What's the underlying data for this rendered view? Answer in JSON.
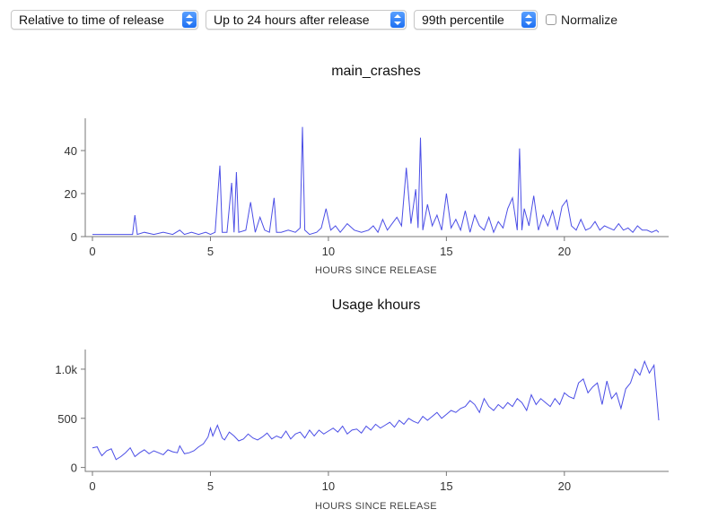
{
  "controls": {
    "time_mode": "Relative to time of release",
    "time_window": "Up to 24 hours after release",
    "percentile": "99th percentile",
    "normalize_label": "Normalize",
    "normalize_checked": false
  },
  "colors": {
    "series": "#4b4ee6",
    "axis": "#777777",
    "accent": "#1d6ff2"
  },
  "chart_data": [
    {
      "type": "line",
      "title": "main_crashes",
      "xlabel": "HOURS SINCE RELEASE",
      "ylabel": "",
      "xlim": [
        0,
        24
      ],
      "ylim": [
        0,
        55
      ],
      "xticks": [
        0,
        5,
        10,
        15,
        20
      ],
      "yticks": [
        0,
        20,
        40
      ],
      "ytick_labels": [
        "0",
        "20",
        "40"
      ],
      "grid": false,
      "series": [
        {
          "x": [
            0,
            0.5,
            1,
            1.5,
            1.7,
            1.8,
            1.9,
            2.2,
            2.6,
            3,
            3.4,
            3.7,
            3.9,
            4.2,
            4.5,
            4.8,
            5,
            5.2,
            5.4,
            5.5,
            5.7,
            5.9,
            6,
            6.1,
            6.2,
            6.5,
            6.7,
            6.9,
            7.1,
            7.3,
            7.5,
            7.7,
            7.8,
            8,
            8.3,
            8.6,
            8.8,
            8.9,
            9,
            9.2,
            9.5,
            9.7,
            9.9,
            10.1,
            10.3,
            10.5,
            10.8,
            11.1,
            11.4,
            11.7,
            11.9,
            12.1,
            12.3,
            12.5,
            12.7,
            12.9,
            13.1,
            13.3,
            13.5,
            13.7,
            13.8,
            13.9,
            14,
            14.2,
            14.4,
            14.6,
            14.8,
            15,
            15.2,
            15.4,
            15.6,
            15.8,
            16,
            16.2,
            16.4,
            16.6,
            16.8,
            17,
            17.2,
            17.4,
            17.6,
            17.8,
            18,
            18.1,
            18.2,
            18.3,
            18.5,
            18.7,
            18.9,
            19.1,
            19.3,
            19.5,
            19.7,
            19.9,
            20.1,
            20.3,
            20.5,
            20.7,
            20.9,
            21.1,
            21.3,
            21.5,
            21.7,
            21.9,
            22.1,
            22.3,
            22.5,
            22.7,
            22.9,
            23.1,
            23.3,
            23.5,
            23.7,
            23.9,
            24
          ],
          "y": [
            1,
            1,
            1,
            1,
            1,
            10,
            1,
            2,
            1,
            2,
            1,
            3,
            1,
            2,
            1,
            2,
            1,
            2,
            33,
            2,
            2,
            25,
            2,
            30,
            2,
            3,
            16,
            2,
            9,
            3,
            2,
            18,
            2,
            2,
            3,
            2,
            4,
            51,
            3,
            1,
            2,
            4,
            13,
            3,
            5,
            2,
            6,
            3,
            2,
            3,
            5,
            2,
            8,
            3,
            6,
            9,
            5,
            32,
            6,
            22,
            4,
            46,
            3,
            15,
            5,
            10,
            3,
            20,
            4,
            8,
            3,
            12,
            2,
            10,
            5,
            3,
            9,
            2,
            7,
            4,
            13,
            18,
            3,
            41,
            3,
            13,
            5,
            19,
            3,
            10,
            5,
            12,
            3,
            14,
            17,
            5,
            3,
            8,
            3,
            4,
            7,
            3,
            5,
            4,
            3,
            6,
            3,
            4,
            2,
            5,
            3,
            3,
            2,
            3,
            2
          ]
        }
      ]
    },
    {
      "type": "line",
      "title": "Usage khours",
      "xlabel": "HOURS SINCE RELEASE",
      "ylabel": "",
      "xlim": [
        0,
        24
      ],
      "ylim": [
        -40,
        1200
      ],
      "xticks": [
        0,
        5,
        10,
        15,
        20
      ],
      "yticks": [
        0,
        500,
        1000
      ],
      "ytick_labels": [
        "0",
        "500",
        "1.0k"
      ],
      "grid": false,
      "series": [
        {
          "x": [
            0,
            0.2,
            0.3,
            0.4,
            0.6,
            0.8,
            1,
            1.2,
            1.4,
            1.6,
            1.8,
            2,
            2.2,
            2.4,
            2.6,
            2.8,
            3,
            3.2,
            3.4,
            3.6,
            3.7,
            3.9,
            4.1,
            4.3,
            4.5,
            4.7,
            4.9,
            5,
            5.1,
            5.3,
            5.5,
            5.6,
            5.8,
            6,
            6.2,
            6.4,
            6.6,
            6.8,
            7,
            7.2,
            7.4,
            7.6,
            7.8,
            8,
            8.2,
            8.4,
            8.6,
            8.8,
            9,
            9.2,
            9.4,
            9.6,
            9.8,
            10,
            10.2,
            10.4,
            10.6,
            10.8,
            11,
            11.2,
            11.4,
            11.6,
            11.8,
            12,
            12.2,
            12.4,
            12.6,
            12.8,
            13,
            13.2,
            13.4,
            13.6,
            13.8,
            14,
            14.2,
            14.4,
            14.6,
            14.8,
            15,
            15.2,
            15.4,
            15.6,
            15.8,
            16,
            16.2,
            16.4,
            16.6,
            16.8,
            17,
            17.2,
            17.4,
            17.6,
            17.8,
            18,
            18.2,
            18.4,
            18.6,
            18.8,
            19,
            19.2,
            19.4,
            19.6,
            19.8,
            20,
            20.2,
            20.4,
            20.6,
            20.8,
            21,
            21.2,
            21.4,
            21.6,
            21.8,
            22,
            22.2,
            22.4,
            22.6,
            22.8,
            23,
            23.2,
            23.4,
            23.6,
            23.8,
            24
          ],
          "y": [
            200,
            210,
            160,
            120,
            170,
            190,
            80,
            110,
            150,
            200,
            110,
            150,
            180,
            140,
            170,
            150,
            130,
            180,
            160,
            150,
            220,
            140,
            150,
            170,
            210,
            240,
            310,
            400,
            320,
            430,
            300,
            280,
            360,
            320,
            270,
            290,
            340,
            300,
            280,
            310,
            350,
            290,
            320,
            300,
            370,
            290,
            340,
            360,
            300,
            380,
            320,
            380,
            340,
            370,
            400,
            360,
            420,
            340,
            380,
            390,
            350,
            420,
            380,
            440,
            400,
            430,
            460,
            410,
            480,
            440,
            500,
            470,
            450,
            520,
            480,
            520,
            560,
            500,
            540,
            580,
            560,
            600,
            620,
            680,
            640,
            560,
            700,
            620,
            580,
            640,
            600,
            660,
            620,
            700,
            660,
            580,
            740,
            640,
            700,
            660,
            620,
            700,
            640,
            760,
            720,
            700,
            860,
            900,
            760,
            820,
            860,
            640,
            880,
            700,
            760,
            600,
            800,
            860,
            1000,
            940,
            1080,
            960,
            1040,
            480
          ]
        }
      ]
    }
  ]
}
